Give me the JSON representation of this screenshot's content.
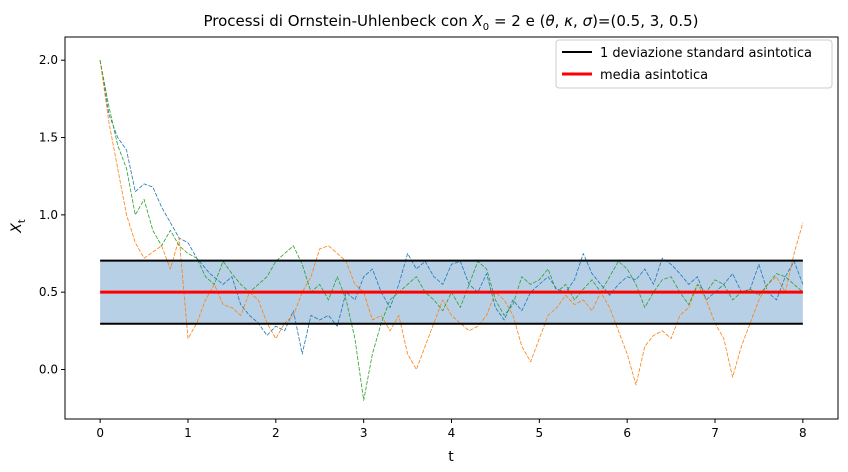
{
  "chart_data": {
    "type": "line",
    "title_parts": {
      "prefix": "Processi di Ornstein-Uhlenbeck con ",
      "x0_symbol": "X",
      "x0_subscript": "0",
      "x0_value": " = 2 e (",
      "theta": "θ",
      "sep1": ", ",
      "kappa": "κ",
      "sep2": ", ",
      "sigma": "σ",
      "suffix": ")=(0.5, 3, 0.5)"
    },
    "xlabel": "t",
    "ylabel_symbol": "X",
    "ylabel_subscript": "t",
    "xlim": [
      -0.4,
      8.4
    ],
    "ylim": [
      -0.32,
      2.15
    ],
    "x_ticks": [
      0,
      1,
      2,
      3,
      4,
      5,
      6,
      7,
      8
    ],
    "x_tick_labels": [
      "0",
      "1",
      "2",
      "3",
      "4",
      "5",
      "6",
      "7",
      "8"
    ],
    "y_ticks": [
      0.0,
      0.5,
      1.0,
      1.5,
      2.0
    ],
    "y_tick_labels": [
      "0.0",
      "0.5",
      "1.0",
      "1.5",
      "2.0"
    ],
    "grid": false,
    "legend_position": "top-right",
    "legend": [
      {
        "label": "1 deviazione standard asintotica",
        "color": "#000000"
      },
      {
        "label": "media asintotica",
        "color": "#ff0000"
      }
    ],
    "asymptotic_mean": 0.5,
    "std_band": [
      0.296,
      0.704
    ],
    "band_x_range": [
      0,
      8
    ],
    "band_color": "#b8d0e6",
    "series": [
      {
        "color": "#1f77b4",
        "x": [
          0,
          0.1,
          0.2,
          0.3,
          0.4,
          0.5,
          0.6,
          0.7,
          0.8,
          0.9,
          1.0,
          1.1,
          1.25,
          1.4,
          1.5,
          1.6,
          1.7,
          1.8,
          1.9,
          2.0,
          2.1,
          2.2,
          2.3,
          2.4,
          2.5,
          2.6,
          2.7,
          2.8,
          2.9,
          3.0,
          3.1,
          3.2,
          3.3,
          3.4,
          3.5,
          3.6,
          3.7,
          3.8,
          3.9,
          4.0,
          4.1,
          4.2,
          4.3,
          4.4,
          4.5,
          4.6,
          4.7,
          4.8,
          4.9,
          5.0,
          5.1,
          5.2,
          5.3,
          5.4,
          5.5,
          5.6,
          5.7,
          5.8,
          5.9,
          6.0,
          6.1,
          6.2,
          6.3,
          6.4,
          6.5,
          6.6,
          6.7,
          6.8,
          6.9,
          7.0,
          7.1,
          7.2,
          7.3,
          7.4,
          7.5,
          7.6,
          7.7,
          7.8,
          7.9,
          8.0
        ],
        "y": [
          2.0,
          1.65,
          1.5,
          1.42,
          1.15,
          1.2,
          1.18,
          1.05,
          0.95,
          0.85,
          0.82,
          0.72,
          0.62,
          0.55,
          0.6,
          0.42,
          0.35,
          0.3,
          0.22,
          0.28,
          0.25,
          0.38,
          0.1,
          0.35,
          0.32,
          0.35,
          0.28,
          0.5,
          0.45,
          0.6,
          0.65,
          0.5,
          0.4,
          0.55,
          0.75,
          0.65,
          0.7,
          0.6,
          0.55,
          0.68,
          0.7,
          0.55,
          0.5,
          0.62,
          0.4,
          0.32,
          0.45,
          0.38,
          0.5,
          0.55,
          0.6,
          0.52,
          0.5,
          0.58,
          0.75,
          0.62,
          0.55,
          0.48,
          0.55,
          0.6,
          0.58,
          0.65,
          0.55,
          0.72,
          0.68,
          0.62,
          0.55,
          0.6,
          0.45,
          0.5,
          0.55,
          0.62,
          0.5,
          0.52,
          0.68,
          0.5,
          0.45,
          0.6,
          0.7,
          0.55
        ]
      },
      {
        "color": "#ff7f0e",
        "x": [
          0,
          0.1,
          0.2,
          0.3,
          0.4,
          0.5,
          0.6,
          0.7,
          0.8,
          0.9,
          1.0,
          1.1,
          1.2,
          1.3,
          1.4,
          1.5,
          1.6,
          1.7,
          1.8,
          1.9,
          2.0,
          2.1,
          2.2,
          2.3,
          2.4,
          2.5,
          2.6,
          2.7,
          2.8,
          2.9,
          3.0,
          3.1,
          3.2,
          3.3,
          3.4,
          3.5,
          3.6,
          3.7,
          3.8,
          3.9,
          4.0,
          4.1,
          4.2,
          4.3,
          4.4,
          4.5,
          4.6,
          4.7,
          4.8,
          4.9,
          5.0,
          5.1,
          5.2,
          5.3,
          5.4,
          5.5,
          5.6,
          5.7,
          5.8,
          5.9,
          6.0,
          6.1,
          6.2,
          6.3,
          6.4,
          6.5,
          6.6,
          6.7,
          6.8,
          6.9,
          7.0,
          7.1,
          7.2,
          7.3,
          7.4,
          7.5,
          7.6,
          7.7,
          7.8,
          7.9,
          8.0
        ],
        "y": [
          2.0,
          1.6,
          1.3,
          1.0,
          0.82,
          0.72,
          0.76,
          0.8,
          0.65,
          0.85,
          0.2,
          0.3,
          0.45,
          0.55,
          0.42,
          0.4,
          0.35,
          0.5,
          0.45,
          0.3,
          0.2,
          0.3,
          0.35,
          0.5,
          0.6,
          0.78,
          0.8,
          0.75,
          0.7,
          0.55,
          0.5,
          0.32,
          0.35,
          0.25,
          0.35,
          0.1,
          0.0,
          0.15,
          0.3,
          0.45,
          0.35,
          0.3,
          0.25,
          0.28,
          0.35,
          0.5,
          0.45,
          0.35,
          0.15,
          0.05,
          0.2,
          0.35,
          0.4,
          0.48,
          0.42,
          0.45,
          0.38,
          0.5,
          0.4,
          0.25,
          0.1,
          -0.1,
          0.15,
          0.22,
          0.25,
          0.2,
          0.35,
          0.4,
          0.55,
          0.45,
          0.3,
          0.2,
          -0.05,
          0.15,
          0.3,
          0.45,
          0.55,
          0.6,
          0.5,
          0.75,
          0.95
        ]
      },
      {
        "color": "#2ca02c",
        "x": [
          0,
          0.1,
          0.2,
          0.3,
          0.4,
          0.5,
          0.6,
          0.7,
          0.8,
          0.9,
          1.0,
          1.1,
          1.2,
          1.3,
          1.4,
          1.5,
          1.6,
          1.7,
          1.8,
          1.9,
          2.0,
          2.1,
          2.2,
          2.3,
          2.4,
          2.5,
          2.6,
          2.7,
          2.8,
          2.9,
          3.0,
          3.1,
          3.2,
          3.3,
          3.4,
          3.5,
          3.6,
          3.7,
          3.8,
          3.9,
          4.0,
          4.1,
          4.2,
          4.3,
          4.4,
          4.5,
          4.6,
          4.7,
          4.8,
          4.9,
          5.0,
          5.1,
          5.2,
          5.3,
          5.4,
          5.5,
          5.6,
          5.7,
          5.8,
          5.9,
          6.0,
          6.1,
          6.2,
          6.3,
          6.4,
          6.5,
          6.6,
          6.7,
          6.8,
          6.9,
          7.0,
          7.1,
          7.2,
          7.3,
          7.4,
          7.5,
          7.6,
          7.7,
          7.8,
          7.9,
          8.0
        ],
        "y": [
          2.0,
          1.7,
          1.45,
          1.3,
          1.0,
          1.1,
          0.9,
          0.8,
          0.9,
          0.8,
          0.75,
          0.72,
          0.6,
          0.55,
          0.7,
          0.62,
          0.55,
          0.5,
          0.55,
          0.6,
          0.7,
          0.75,
          0.8,
          0.68,
          0.5,
          0.55,
          0.45,
          0.6,
          0.45,
          0.2,
          -0.2,
          0.1,
          0.3,
          0.45,
          0.5,
          0.55,
          0.6,
          0.5,
          0.45,
          0.38,
          0.5,
          0.4,
          0.55,
          0.7,
          0.65,
          0.45,
          0.35,
          0.42,
          0.6,
          0.55,
          0.58,
          0.65,
          0.5,
          0.55,
          0.45,
          0.52,
          0.58,
          0.5,
          0.6,
          0.7,
          0.65,
          0.55,
          0.4,
          0.5,
          0.58,
          0.6,
          0.5,
          0.42,
          0.55,
          0.5,
          0.58,
          0.55,
          0.45,
          0.5,
          0.52,
          0.48,
          0.55,
          0.62,
          0.6,
          0.55,
          0.5
        ]
      }
    ]
  }
}
